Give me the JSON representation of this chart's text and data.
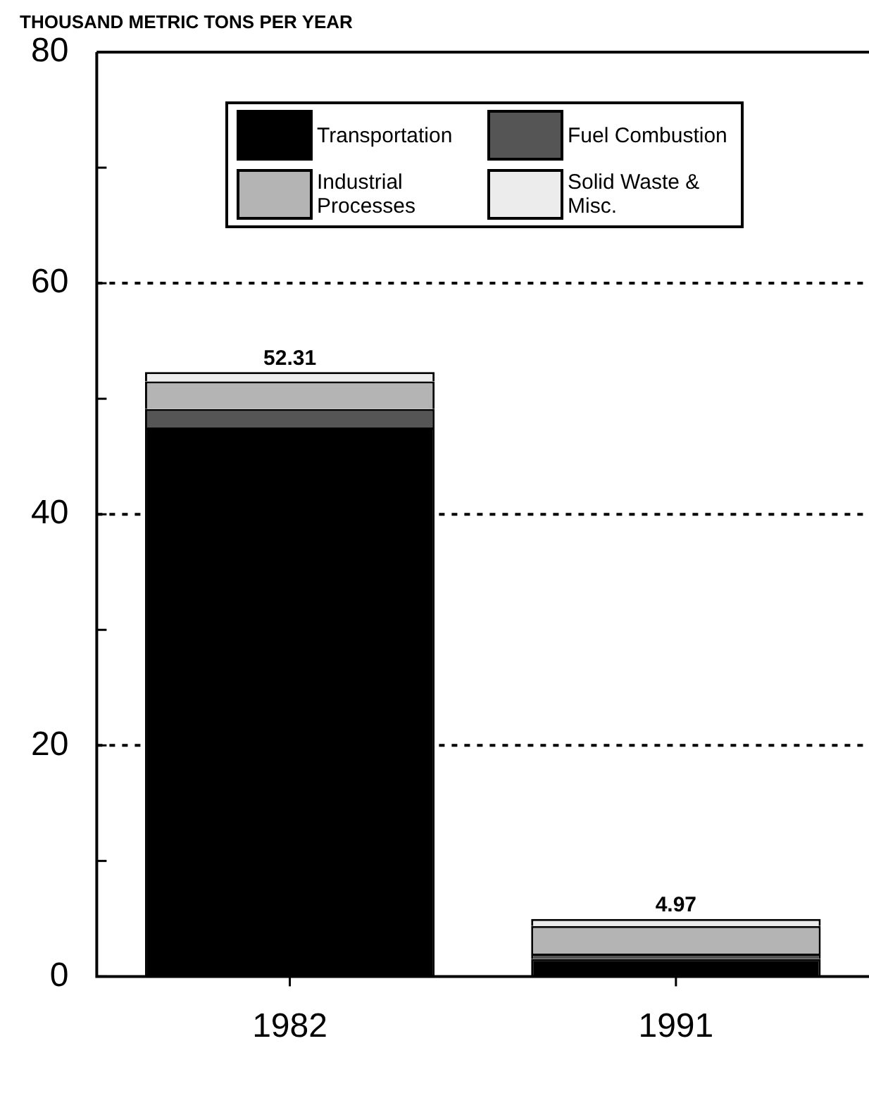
{
  "chart_data": {
    "type": "bar",
    "stacked": true,
    "ylabel": "THOUSAND METRIC TONS PER YEAR",
    "categories": [
      "1982",
      "1991"
    ],
    "series": [
      {
        "name": "Transportation",
        "color": "#000000",
        "values": [
          47.51,
          1.5
        ]
      },
      {
        "name": "Fuel Combustion",
        "color": "#555555",
        "values": [
          1.6,
          0.47
        ]
      },
      {
        "name": "Industrial Processes",
        "color": "#b4b4b4",
        "values": [
          2.4,
          2.4
        ]
      },
      {
        "name": "Solid Waste & Misc.",
        "color": "#ececec",
        "values": [
          0.8,
          0.6
        ]
      }
    ],
    "totals": [
      "52.31",
      "4.97"
    ],
    "ylim": [
      0,
      80
    ],
    "yticks": [
      0,
      {
        "value": 10,
        "label": null
      },
      20,
      {
        "value": 30,
        "label": null
      },
      40,
      {
        "value": 50,
        "label": null
      },
      60,
      {
        "value": 70,
        "label": null
      },
      80
    ],
    "grid": "y",
    "line_style": "dotted",
    "legend": "top"
  }
}
